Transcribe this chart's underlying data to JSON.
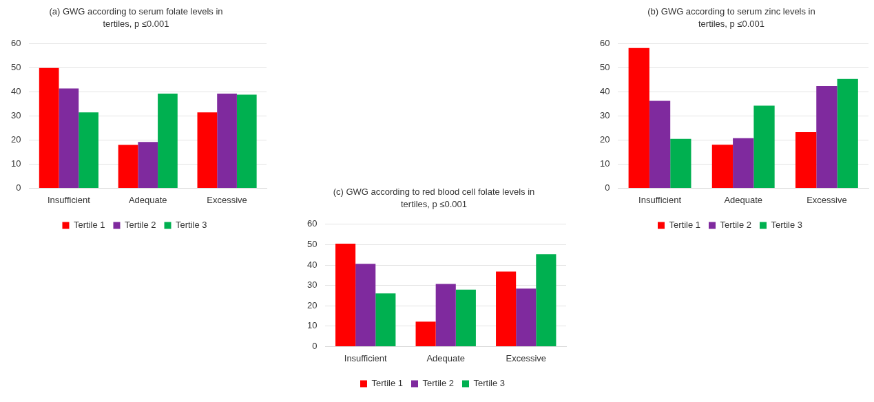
{
  "chart_data": [
    {
      "type": "bar",
      "title": "(a) GWG according to serum folate levels in tertiles, p ≤0.001",
      "categories": [
        "Insufficient",
        "Adequate",
        "Excessive"
      ],
      "ylim": [
        0,
        60
      ],
      "yticks": [
        0,
        10,
        20,
        30,
        40,
        50,
        60
      ],
      "grid": "y",
      "legend": "bottom",
      "series": [
        {
          "name": "Tertile 1",
          "color": "#ff0000",
          "values": [
            50,
            18,
            31.5
          ]
        },
        {
          "name": "Tertile 2",
          "color": "#7f2a9e",
          "values": [
            41.5,
            19.2,
            39.3
          ]
        },
        {
          "name": "Tertile 3",
          "color": "#00b050",
          "values": [
            31.5,
            39.3,
            38.9
          ]
        }
      ]
    },
    {
      "type": "bar",
      "title": "(b) GWG according to serum zinc levels in tertiles, p ≤0.001",
      "categories": [
        "Insufficient",
        "Adequate",
        "Excessive"
      ],
      "ylim": [
        0,
        60
      ],
      "yticks": [
        0,
        10,
        20,
        30,
        40,
        50,
        60
      ],
      "grid": "y",
      "legend": "bottom",
      "series": [
        {
          "name": "Tertile 1",
          "color": "#ff0000",
          "values": [
            58.3,
            18.1,
            23.3
          ]
        },
        {
          "name": "Tertile 2",
          "color": "#7f2a9e",
          "values": [
            36.3,
            20.8,
            42.5
          ]
        },
        {
          "name": "Tertile 3",
          "color": "#00b050",
          "values": [
            20.5,
            34.3,
            45.4
          ]
        }
      ]
    },
    {
      "type": "bar",
      "title": "(c) GWG according to red blood cell folate levels in tertiles, p ≤0.001",
      "categories": [
        "Insufficient",
        "Adequate",
        "Excessive"
      ],
      "ylim": [
        0,
        60
      ],
      "yticks": [
        0,
        10,
        20,
        30,
        40,
        50,
        60
      ],
      "grid": "y",
      "legend": "bottom",
      "series": [
        {
          "name": "Tertile 1",
          "color": "#ff0000",
          "values": [
            50.5,
            12.2,
            36.8
          ]
        },
        {
          "name": "Tertile 2",
          "color": "#7f2a9e",
          "values": [
            40.6,
            30.7,
            28.4
          ]
        },
        {
          "name": "Tertile 3",
          "color": "#00b050",
          "values": [
            26.1,
            27.9,
            45.3
          ]
        }
      ]
    }
  ]
}
